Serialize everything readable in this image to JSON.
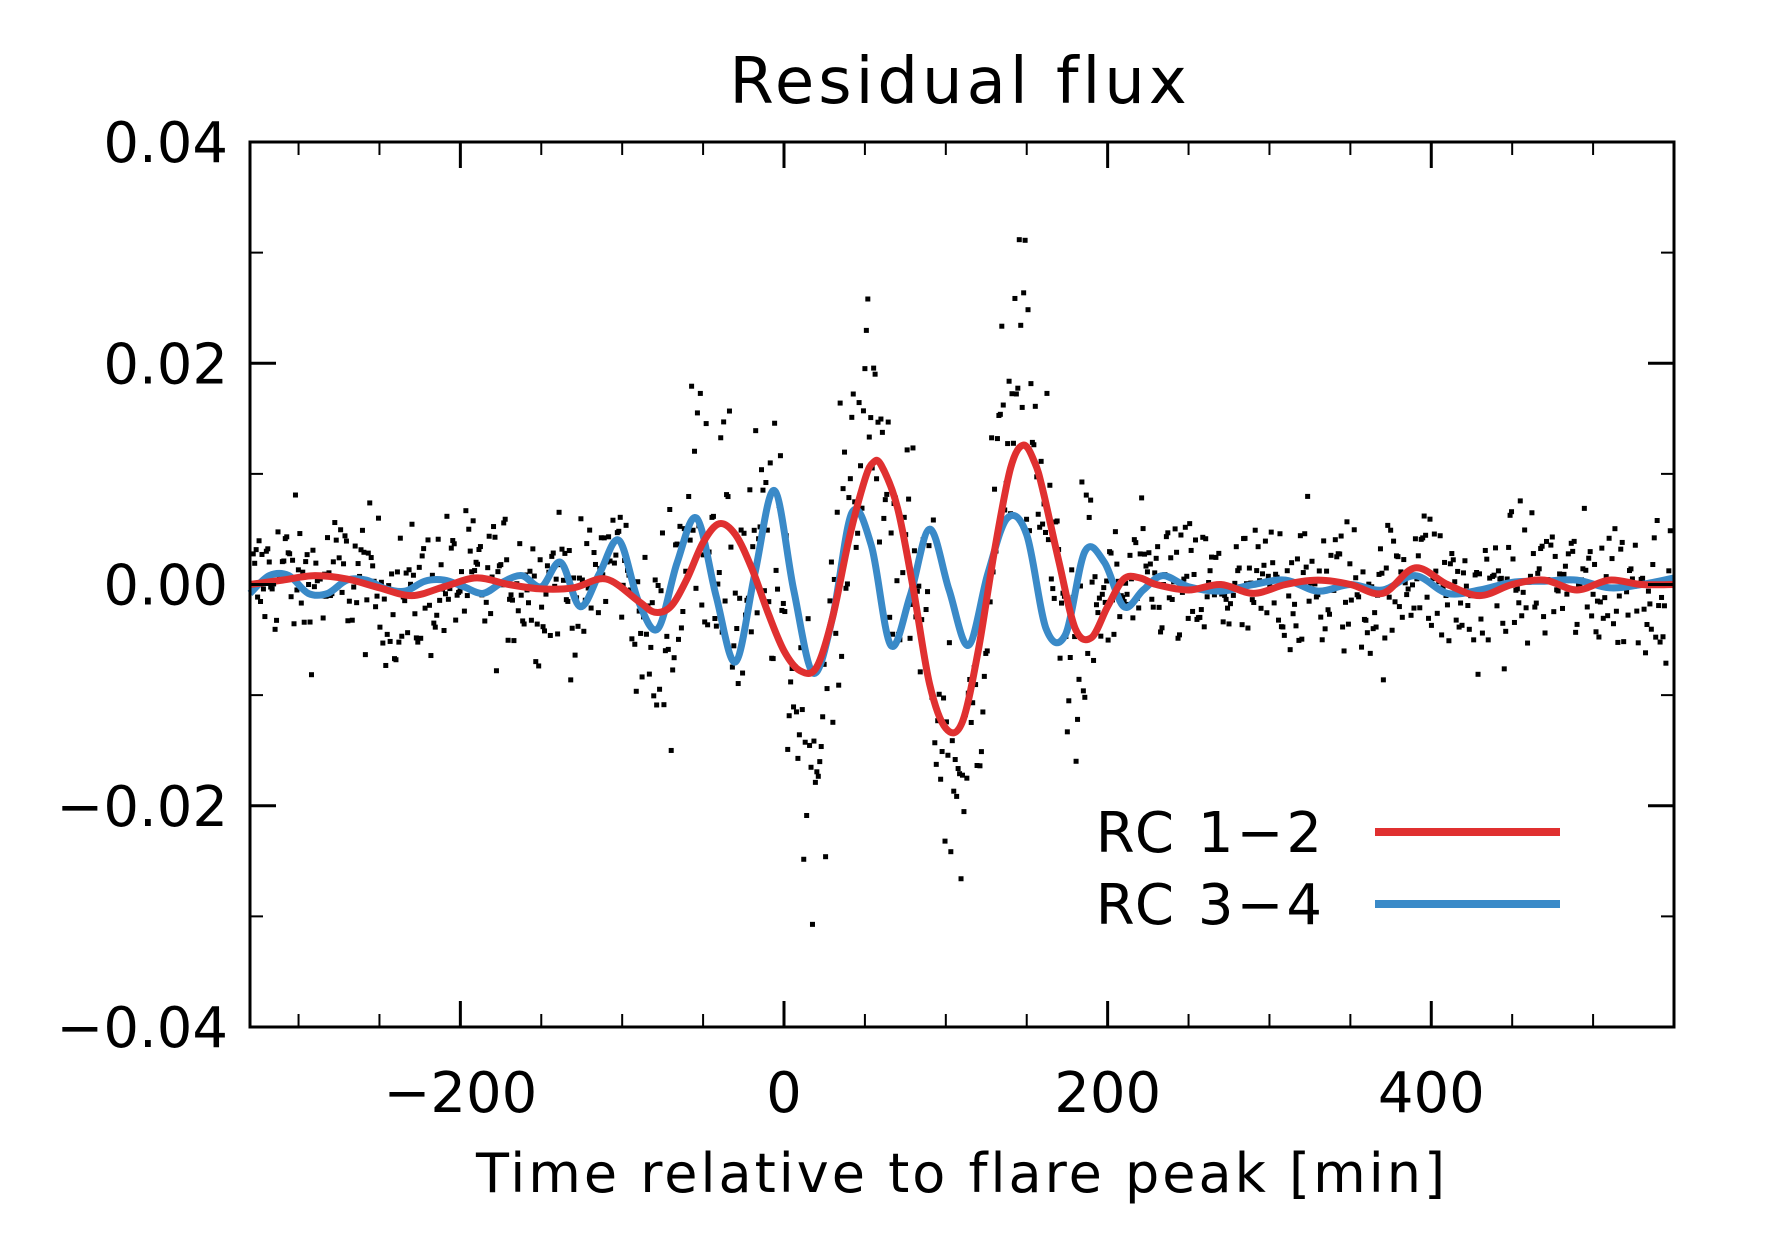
{
  "chart_data": {
    "type": "line",
    "title": "Residual flux",
    "xlabel": "Time relative to flare peak [min]",
    "ylabel": "",
    "xlim": [
      -330,
      550
    ],
    "ylim": [
      -0.04,
      0.04
    ],
    "x_ticks": [
      {
        "value": -200,
        "label": "−200"
      },
      {
        "value": 0,
        "label": "0"
      },
      {
        "value": 200,
        "label": "200"
      },
      {
        "value": 400,
        "label": "400"
      }
    ],
    "y_ticks": [
      {
        "value": 0.04,
        "label": "0.04"
      },
      {
        "value": 0.02,
        "label": "0.02"
      },
      {
        "value": 0.0,
        "label": "0.00"
      },
      {
        "value": -0.02,
        "label": "−0.02"
      },
      {
        "value": -0.04,
        "label": "−0.04"
      }
    ],
    "x_minor_step": 50,
    "y_minor_step": 0.01,
    "legend_position": "bottom-right",
    "series": [
      {
        "name": "RC 1−2",
        "color": "#e03030",
        "x": [
          -330,
          -310,
          -290,
          -270,
          -250,
          -230,
          -210,
          -190,
          -170,
          -150,
          -130,
          -110,
          -90,
          -80,
          -70,
          -60,
          -50,
          -40,
          -30,
          -20,
          -10,
          0,
          10,
          20,
          30,
          40,
          50,
          55,
          60,
          70,
          80,
          90,
          100,
          110,
          120,
          130,
          140,
          148,
          155,
          160,
          170,
          180,
          190,
          200,
          210,
          220,
          230,
          250,
          270,
          290,
          310,
          330,
          350,
          370,
          390,
          410,
          430,
          450,
          470,
          490,
          510,
          530,
          550
        ],
        "y": [
          0.0,
          0.0004,
          0.0008,
          0.0005,
          -0.0003,
          -0.001,
          -0.0002,
          0.0006,
          0.0,
          -0.0004,
          -0.0003,
          0.0005,
          -0.0015,
          -0.0025,
          -0.002,
          0.0005,
          0.0038,
          0.0055,
          0.0045,
          0.0015,
          -0.0025,
          -0.006,
          -0.0078,
          -0.0075,
          -0.003,
          0.004,
          0.0095,
          0.011,
          0.0108,
          0.007,
          -0.0005,
          -0.009,
          -0.013,
          -0.0125,
          -0.006,
          0.003,
          0.0105,
          0.0126,
          0.011,
          0.0085,
          0.002,
          -0.004,
          -0.0048,
          -0.002,
          0.0005,
          0.0006,
          0.0,
          -0.0005,
          0.0,
          -0.0008,
          0.0,
          0.0004,
          0.0,
          -0.0008,
          0.0015,
          0.0,
          -0.001,
          0.0,
          0.0004,
          -0.0005,
          0.0004,
          0.0,
          0.0
        ]
      },
      {
        "name": "RC 3−4",
        "color": "#3a8ac8",
        "x": [
          -330,
          -318,
          -306,
          -294,
          -282,
          -270,
          -258,
          -246,
          -234,
          -222,
          -210,
          -198,
          -186,
          -174,
          -162,
          -150,
          -138,
          -126,
          -114,
          -102,
          -90,
          -78,
          -66,
          -54,
          -42,
          -30,
          -18,
          -6,
          6,
          18,
          30,
          42,
          54,
          66,
          78,
          90,
          102,
          114,
          126,
          138,
          150,
          162,
          174,
          186,
          198,
          210,
          222,
          234,
          250,
          270,
          290,
          310,
          330,
          350,
          370,
          390,
          410,
          430,
          450,
          470,
          490,
          510,
          530,
          550
        ],
        "y": [
          -0.0008,
          0.0008,
          0.0008,
          -0.0008,
          -0.0008,
          0.0004,
          0.0004,
          -0.0004,
          -0.0006,
          0.0003,
          0.0004,
          -0.0002,
          -0.0008,
          0.0002,
          0.0008,
          -0.0002,
          0.002,
          -0.002,
          0.001,
          0.004,
          -0.0015,
          -0.004,
          0.002,
          0.006,
          -0.001,
          -0.007,
          0.001,
          0.0085,
          -0.0005,
          -0.008,
          -0.003,
          0.0065,
          0.0035,
          -0.0055,
          -0.001,
          0.005,
          -0.0005,
          -0.0055,
          0.001,
          0.006,
          0.0045,
          -0.004,
          -0.0045,
          0.003,
          0.002,
          -0.002,
          -0.0005,
          0.0008,
          -0.0002,
          -0.0006,
          0.0,
          0.0004,
          -0.0006,
          0.0,
          -0.0005,
          0.0008,
          -0.0008,
          -0.0005,
          0.0002,
          0.0003,
          0.0004,
          -0.0003,
          0.0,
          0.0006
        ]
      }
    ],
    "scatter_points": "dense black residual points, approx. 1000, within roughly -0.03 to 0.035"
  }
}
